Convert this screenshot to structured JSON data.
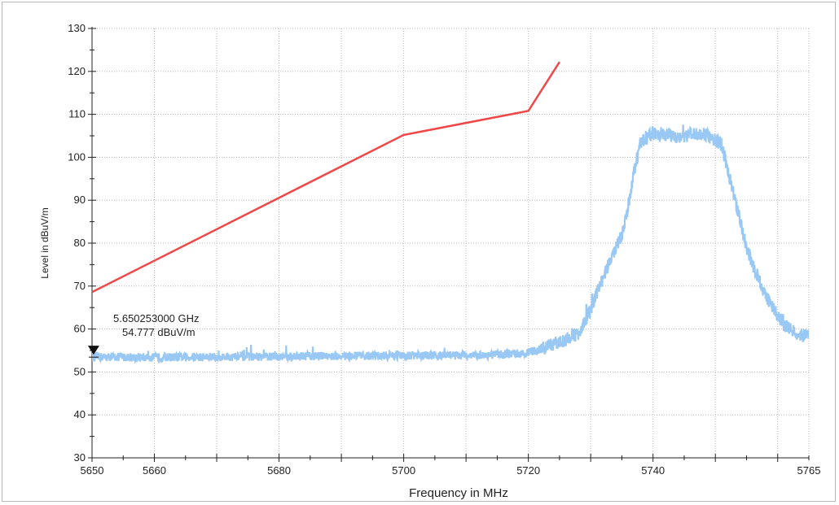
{
  "chart_data": {
    "type": "line",
    "title": "",
    "xlabel": "Frequency in MHz",
    "ylabel": "Level in dBuV/m",
    "xlim": [
      5650,
      5765
    ],
    "ylim": [
      30,
      130
    ],
    "grid": true,
    "x_ticks": [
      5650,
      5660,
      5680,
      5700,
      5720,
      5740,
      5765
    ],
    "x_tick_labels": [
      "5650",
      "5660",
      "5680",
      "5700",
      "5720",
      "5740",
      "5765"
    ],
    "y_ticks": [
      30,
      40,
      50,
      60,
      70,
      80,
      90,
      100,
      110,
      120,
      130
    ],
    "y_tick_labels": [
      "30",
      "40",
      "50",
      "60",
      "70",
      "80",
      "90",
      "100",
      "110",
      "120",
      "130"
    ],
    "series": [
      {
        "color": "#f04848",
        "x": [
          5650,
          5700,
          5720,
          5725
        ],
        "y": [
          68.6,
          105.2,
          110.8,
          122.2
        ]
      },
      {
        "color": "#99c8f4",
        "x": [
          5650,
          5660,
          5670,
          5680,
          5690,
          5700,
          5710,
          5715,
          5720,
          5722,
          5724,
          5726,
          5728,
          5729,
          5730,
          5731,
          5732,
          5733,
          5734,
          5735,
          5736,
          5737,
          5738,
          5740,
          5742,
          5744,
          5746,
          5748,
          5750,
          5751,
          5752,
          5753,
          5754,
          5755,
          5756,
          5757,
          5758,
          5759,
          5760,
          5761,
          5762,
          5763,
          5764,
          5765
        ],
        "y": [
          53.5,
          53.4,
          53.5,
          53.6,
          53.7,
          53.8,
          53.9,
          54.0,
          54.5,
          55.3,
          56.5,
          57.5,
          59.0,
          61.5,
          64.5,
          68.5,
          72.0,
          75.5,
          78.5,
          82.0,
          88.0,
          97.0,
          103.5,
          105.5,
          105.4,
          104.8,
          105.3,
          105.6,
          104.0,
          103.0,
          97.0,
          91.0,
          85.0,
          79.0,
          75.0,
          71.5,
          68.0,
          65.5,
          63.0,
          61.0,
          60.0,
          59.0,
          58.5,
          58.5
        ]
      }
    ],
    "marker": {
      "x": 5650.253,
      "y": 54.777,
      "line1": "5.650253000 GHz",
      "line2": "54.777 dBuV/m"
    }
  }
}
